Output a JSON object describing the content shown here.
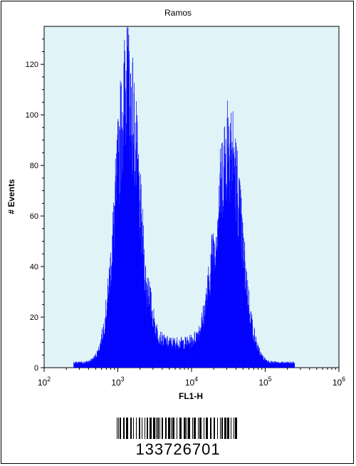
{
  "chart_data": {
    "type": "histogram",
    "title": "Ramos",
    "xlabel": "FL1-H",
    "ylabel": "# Events",
    "x_scale": "log",
    "xlim": [
      100,
      1000000
    ],
    "ylim": [
      0,
      135
    ],
    "x_ticks": [
      {
        "base": "10",
        "exp": "2",
        "value": 100
      },
      {
        "base": "10",
        "exp": "3",
        "value": 1000
      },
      {
        "base": "10",
        "exp": "4",
        "value": 10000
      },
      {
        "base": "10",
        "exp": "5",
        "value": 100000
      },
      {
        "base": "10",
        "exp": "6",
        "value": 1000000
      }
    ],
    "y_ticks": [
      "0",
      "20",
      "40",
      "60",
      "80",
      "100",
      "120"
    ],
    "y_tick_values": [
      0,
      20,
      40,
      60,
      80,
      100,
      120
    ],
    "peaks": [
      {
        "x": 1350,
        "max_events": 136
      },
      {
        "x": 32000,
        "max_events": 111
      }
    ],
    "series": [
      {
        "color": "#0000ff",
        "background": "#e0f4f7"
      }
    ]
  },
  "barcode": {
    "number": "133726701"
  }
}
